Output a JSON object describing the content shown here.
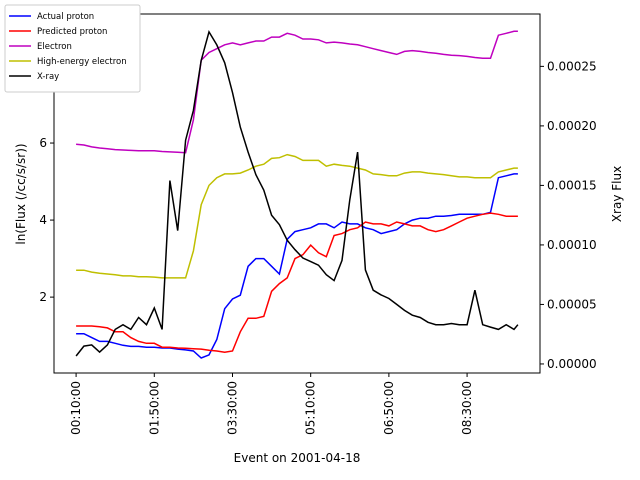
{
  "chart_data": {
    "type": "line",
    "x_label": "Event on 2001-04-18",
    "y_label": "ln(Flux (/cc/s/sr))",
    "y2_label": "Xray Flux",
    "x": [
      "00:10:00",
      "00:20:00",
      "00:30:00",
      "00:40:00",
      "00:50:00",
      "01:00:00",
      "01:10:00",
      "01:20:00",
      "01:30:00",
      "01:40:00",
      "01:50:00",
      "02:00:00",
      "02:10:00",
      "02:20:00",
      "02:30:00",
      "02:40:00",
      "02:50:00",
      "03:00:00",
      "03:10:00",
      "03:20:00",
      "03:30:00",
      "03:40:00",
      "03:50:00",
      "04:00:00",
      "04:10:00",
      "04:20:00",
      "04:30:00",
      "04:40:00",
      "04:50:00",
      "05:00:00",
      "05:10:00",
      "05:20:00",
      "05:30:00",
      "05:40:00",
      "05:50:00",
      "06:00:00",
      "06:10:00",
      "06:20:00",
      "06:30:00",
      "06:40:00",
      "06:50:00",
      "07:00:00",
      "07:10:00",
      "07:20:00",
      "07:30:00",
      "07:40:00",
      "07:50:00",
      "08:00:00",
      "08:10:00",
      "08:20:00",
      "08:30:00",
      "08:40:00",
      "08:50:00",
      "09:00:00",
      "09:10:00",
      "09:20:00",
      "09:30:00",
      "09:35:00"
    ],
    "xticks": [
      "00:10:00",
      "01:50:00",
      "03:30:00",
      "05:10:00",
      "06:50:00",
      "08:30:00"
    ],
    "ylim": [
      0.03,
      9.35
    ],
    "yticks": [
      2,
      4,
      6
    ],
    "y2lim": [
      -7.6e-06,
      0.000294
    ],
    "y2ticks": [
      {
        "value": 0,
        "label": "0.00000"
      },
      {
        "value": 5e-05,
        "label": "0.00005"
      },
      {
        "value": 0.0001,
        "label": "0.00010"
      },
      {
        "value": 0.00015,
        "label": "0.00015"
      },
      {
        "value": 0.0002,
        "label": "0.00020"
      },
      {
        "value": 0.00025,
        "label": "0.00025"
      }
    ],
    "legend": "upper left",
    "series": [
      {
        "name": "Actual proton",
        "color": "#0000ff",
        "values": [
          1.05,
          1.05,
          0.95,
          0.85,
          0.85,
          0.8,
          0.75,
          0.72,
          0.72,
          0.7,
          0.7,
          0.68,
          0.68,
          0.65,
          0.63,
          0.6,
          0.42,
          0.5,
          0.9,
          1.7,
          1.95,
          2.05,
          2.8,
          3.0,
          3.0,
          2.8,
          2.6,
          3.5,
          3.7,
          3.75,
          3.8,
          3.9,
          3.9,
          3.8,
          3.95,
          3.9,
          3.9,
          3.8,
          3.75,
          3.65,
          3.7,
          3.75,
          3.9,
          4.0,
          4.05,
          4.05,
          4.1,
          4.1,
          4.12,
          4.15,
          4.15,
          4.15,
          4.15,
          4.2,
          5.1,
          5.15,
          5.2,
          5.2
        ]
      },
      {
        "name": "Predicted proton",
        "color": "#ff0000",
        "values": [
          1.25,
          1.25,
          1.25,
          1.23,
          1.2,
          1.1,
          1.1,
          0.95,
          0.85,
          0.8,
          0.8,
          0.7,
          0.7,
          0.68,
          0.67,
          0.66,
          0.65,
          0.62,
          0.6,
          0.57,
          0.6,
          1.1,
          1.45,
          1.45,
          1.5,
          2.15,
          2.35,
          2.5,
          3.0,
          3.1,
          3.35,
          3.15,
          3.05,
          3.6,
          3.65,
          3.75,
          3.8,
          3.95,
          3.9,
          3.9,
          3.85,
          3.95,
          3.9,
          3.85,
          3.85,
          3.75,
          3.7,
          3.75,
          3.85,
          3.95,
          4.05,
          4.1,
          4.15,
          4.18,
          4.15,
          4.1,
          4.1,
          4.1
        ]
      },
      {
        "name": "Electron",
        "color": "#bf00bf",
        "values": [
          5.97,
          5.95,
          5.9,
          5.87,
          5.85,
          5.83,
          5.82,
          5.81,
          5.8,
          5.8,
          5.8,
          5.78,
          5.77,
          5.76,
          5.75,
          6.6,
          8.15,
          8.35,
          8.45,
          8.55,
          8.6,
          8.55,
          8.6,
          8.65,
          8.65,
          8.75,
          8.75,
          8.85,
          8.8,
          8.7,
          8.7,
          8.68,
          8.6,
          8.62,
          8.6,
          8.57,
          8.55,
          8.5,
          8.45,
          8.4,
          8.35,
          8.3,
          8.38,
          8.4,
          8.38,
          8.35,
          8.33,
          8.3,
          8.28,
          8.27,
          8.25,
          8.22,
          8.2,
          8.2,
          8.8,
          8.85,
          8.9,
          8.9
        ]
      },
      {
        "name": "High-energy electron",
        "color": "#bfbf00",
        "values": [
          2.7,
          2.7,
          2.65,
          2.62,
          2.6,
          2.58,
          2.55,
          2.55,
          2.53,
          2.53,
          2.52,
          2.5,
          2.5,
          2.5,
          2.5,
          3.2,
          4.4,
          4.9,
          5.1,
          5.2,
          5.2,
          5.22,
          5.3,
          5.4,
          5.45,
          5.6,
          5.62,
          5.7,
          5.65,
          5.55,
          5.55,
          5.55,
          5.4,
          5.45,
          5.42,
          5.4,
          5.35,
          5.3,
          5.2,
          5.18,
          5.15,
          5.15,
          5.22,
          5.25,
          5.25,
          5.22,
          5.2,
          5.18,
          5.15,
          5.12,
          5.12,
          5.1,
          5.1,
          5.1,
          5.25,
          5.3,
          5.35,
          5.35
        ]
      },
      {
        "name": "X-ray",
        "color": "#000000",
        "axis": "y2",
        "values": [
          6.7e-06,
          1.5e-05,
          1.6e-05,
          1e-05,
          1.6e-05,
          2.9e-05,
          3.3e-05,
          2.9e-05,
          3.9e-05,
          3.3e-05,
          4.7e-05,
          2.9e-05,
          0.000154,
          0.000112,
          0.000188,
          0.000213,
          0.000255,
          0.000279,
          0.000268,
          0.000253,
          0.000228,
          0.000199,
          0.000178,
          0.000159,
          0.000146,
          0.000125,
          0.000117,
          0.000104,
          9.6e-05,
          8.9e-05,
          8.6e-05,
          8.3e-05,
          7.5e-05,
          7e-05,
          8.7e-05,
          0.000138,
          0.000178,
          7.9e-05,
          6.2e-05,
          5.8e-05,
          5.5e-05,
          5e-05,
          4.5e-05,
          4.1e-05,
          3.9e-05,
          3.5e-05,
          3.3e-05,
          3.3e-05,
          3.4e-05,
          3.3e-05,
          3.3e-05,
          6.2e-05,
          3.3e-05,
          3.1e-05,
          2.9e-05,
          3.3e-05,
          2.9e-05,
          3.3e-05
        ]
      }
    ]
  }
}
